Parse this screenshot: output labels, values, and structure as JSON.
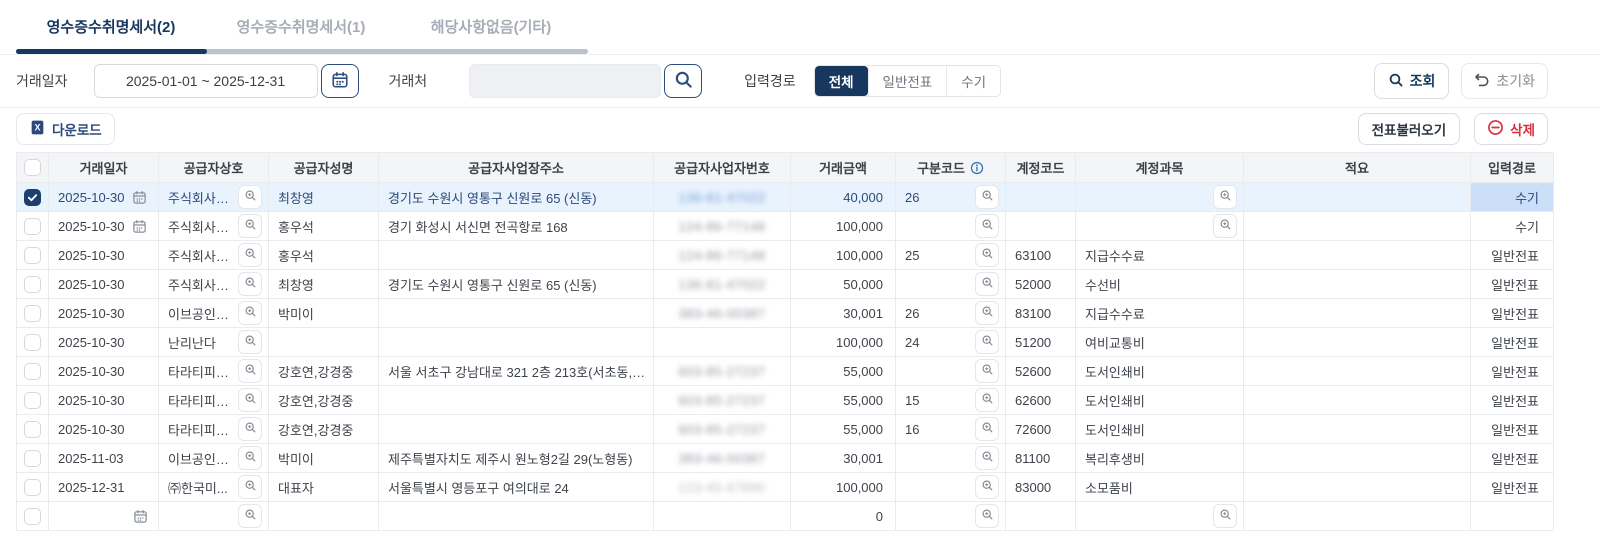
{
  "tabs": [
    {
      "label": "영수증수취명세서(2)",
      "active": true
    },
    {
      "label": "영수증수취명세서(1)",
      "active": false
    },
    {
      "label": "해당사항없음(기타)",
      "active": false
    }
  ],
  "filters": {
    "date_label": "거래일자",
    "date_value": "2025-01-01 ~ 2025-12-31",
    "vendor_label": "거래처",
    "vendor_value": "",
    "input_path_label": "입력경로",
    "input_path_options": [
      "전체",
      "일반전표",
      "수기"
    ],
    "input_path_selected": "전체",
    "query_button": "조회",
    "reset_button": "초기화"
  },
  "toolbar": {
    "download": "다운로드",
    "load_slips": "전표불러오기",
    "delete": "삭제"
  },
  "colors": {
    "primary_navy": "#17375e",
    "selected_row": "#e9f3fd",
    "selected_cell": "#cbe0f8",
    "danger_red": "#d6333f",
    "header_bg": "#f4f5f7"
  },
  "table": {
    "columns": [
      "거래일자",
      "공급자상호",
      "공급자성명",
      "공급자사업장주소",
      "공급자사업자번호",
      "거래금액",
      "구분코드",
      "계정코드",
      "계정과목",
      "적요",
      "입력경로"
    ],
    "rows": [
      {
        "checked": true,
        "selected": true,
        "date": "2025-10-30",
        "calendar": true,
        "supplier": "주식회사유...",
        "name": "최창영",
        "address": "경기도 수원시 영통구 신원로 65 (신동)",
        "biz_no": "136-81-47022",
        "biz_style": "blue",
        "amount": "40,000",
        "type_code": "26",
        "account_code": "",
        "account_name": "",
        "account_lookup": true,
        "memo": "",
        "path": "수기",
        "path_highlight": true
      },
      {
        "checked": false,
        "selected": false,
        "date": "2025-10-30",
        "calendar": true,
        "supplier": "주식회사성...",
        "name": "홍우석",
        "address": "경기 화성시 서신면 전곡항로 168",
        "biz_no": "124-86-77148",
        "biz_style": "",
        "amount": "100,000",
        "type_code": "",
        "account_code": "",
        "account_name": "",
        "account_lookup": true,
        "memo": "",
        "path": "수기",
        "path_highlight": false
      },
      {
        "checked": false,
        "selected": false,
        "date": "2025-10-30",
        "calendar": false,
        "supplier": "주식회사성...",
        "name": "홍우석",
        "address": "",
        "biz_no": "124-86-77148",
        "biz_style": "",
        "amount": "100,000",
        "type_code": "25",
        "account_code": "63100",
        "account_name": "지급수수료",
        "account_lookup": false,
        "memo": "",
        "path": "일반전표",
        "path_highlight": false
      },
      {
        "checked": false,
        "selected": false,
        "date": "2025-10-30",
        "calendar": false,
        "supplier": "주식회사유...",
        "name": "최창영",
        "address": "경기도 수원시 영통구 신원로 65 (신동)",
        "biz_no": "136-81-47022",
        "biz_style": "",
        "amount": "50,000",
        "type_code": "",
        "account_code": "52000",
        "account_name": "수선비",
        "account_lookup": false,
        "memo": "",
        "path": "일반전표",
        "path_highlight": false
      },
      {
        "checked": false,
        "selected": false,
        "date": "2025-10-30",
        "calendar": false,
        "supplier": "이브공인중...",
        "name": "박미이",
        "address": "",
        "biz_no": "383-46-00387",
        "biz_style": "",
        "amount": "30,001",
        "type_code": "26",
        "account_code": "83100",
        "account_name": "지급수수료",
        "account_lookup": false,
        "memo": "",
        "path": "일반전표",
        "path_highlight": false
      },
      {
        "checked": false,
        "selected": false,
        "date": "2025-10-30",
        "calendar": false,
        "supplier": "난리난다",
        "name": "",
        "address": "",
        "biz_no": "",
        "biz_style": "",
        "amount": "100,000",
        "type_code": "24",
        "account_code": "51200",
        "account_name": "여비교통비",
        "account_lookup": false,
        "memo": "",
        "path": "일반전표",
        "path_highlight": false
      },
      {
        "checked": false,
        "selected": false,
        "date": "2025-10-30",
        "calendar": false,
        "supplier": "타라티피에...",
        "name": "강호연,강경중",
        "address": "서울 서초구 강남대로 321 2층 213호(서초동, 대...",
        "biz_no": "603-85-27237",
        "biz_style": "",
        "amount": "55,000",
        "type_code": "",
        "account_code": "52600",
        "account_name": "도서인쇄비",
        "account_lookup": false,
        "memo": "",
        "path": "일반전표",
        "path_highlight": false
      },
      {
        "checked": false,
        "selected": false,
        "date": "2025-10-30",
        "calendar": false,
        "supplier": "타라티피에...",
        "name": "강호연,강경중",
        "address": "",
        "biz_no": "603-85-27237",
        "biz_style": "",
        "amount": "55,000",
        "type_code": "15",
        "account_code": "62600",
        "account_name": "도서인쇄비",
        "account_lookup": false,
        "memo": "",
        "path": "일반전표",
        "path_highlight": false
      },
      {
        "checked": false,
        "selected": false,
        "date": "2025-10-30",
        "calendar": false,
        "supplier": "타라티피에...",
        "name": "강호연,강경중",
        "address": "",
        "biz_no": "603-85-27237",
        "biz_style": "",
        "amount": "55,000",
        "type_code": "16",
        "account_code": "72600",
        "account_name": "도서인쇄비",
        "account_lookup": false,
        "memo": "",
        "path": "일반전표",
        "path_highlight": false
      },
      {
        "checked": false,
        "selected": false,
        "date": "2025-11-03",
        "calendar": false,
        "supplier": "이브공인중...",
        "name": "박미이",
        "address": "제주특별자치도 제주시 원노형2길 29(노형동)",
        "biz_no": "383-46-00387",
        "biz_style": "",
        "amount": "30,001",
        "type_code": "",
        "account_code": "81100",
        "account_name": "복리후생비",
        "account_lookup": false,
        "memo": "",
        "path": "일반전표",
        "path_highlight": false
      },
      {
        "checked": false,
        "selected": false,
        "date": "2025-12-31",
        "calendar": false,
        "supplier": "㈜한국미...",
        "name": "대표자",
        "address": "서울특별시 영등포구 여의대로 24",
        "biz_no": "123-45-67890",
        "biz_style": "light",
        "amount": "100,000",
        "type_code": "",
        "account_code": "83000",
        "account_name": "소모품비",
        "account_lookup": false,
        "memo": "",
        "path": "일반전표",
        "path_highlight": false
      },
      {
        "checked": false,
        "selected": false,
        "date": "",
        "calendar": true,
        "supplier": "",
        "name": "",
        "address": "",
        "biz_no": "",
        "biz_style": "",
        "amount": "0",
        "type_code": "",
        "account_code": "",
        "account_name": "",
        "account_lookup": true,
        "memo": "",
        "path": "",
        "path_highlight": false
      }
    ]
  }
}
